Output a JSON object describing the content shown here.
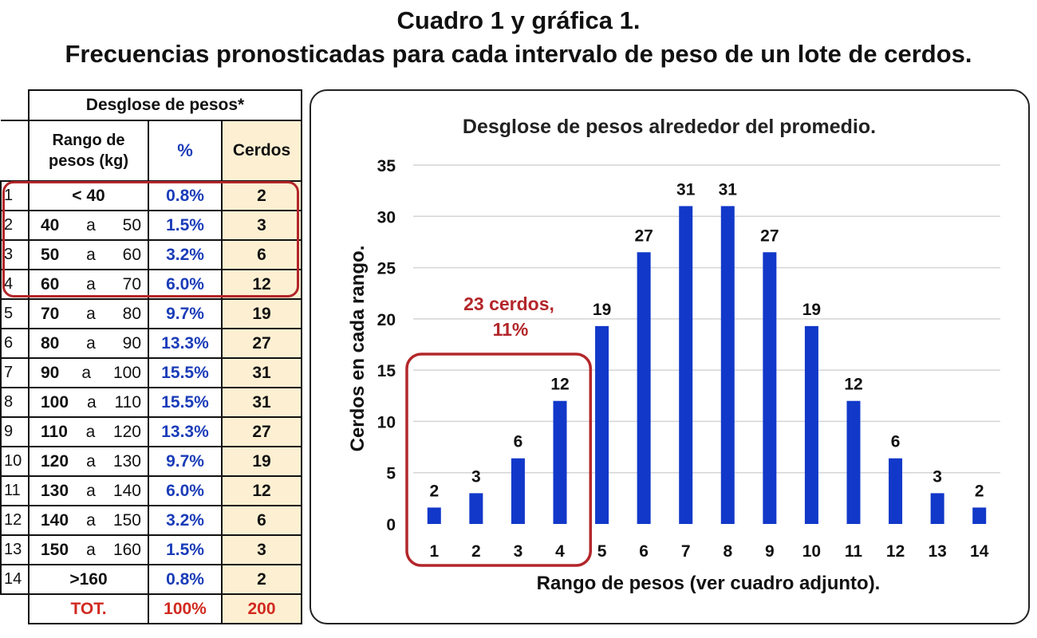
{
  "title_line1": "Cuadro 1 y gráfica 1.",
  "title_line2": "Frecuencias pronosticadas para cada intervalo de peso de un lote de cerdos.",
  "table": {
    "title": "Desglose de pesos*",
    "col_range": "Rango de pesos (kg)",
    "col_range_line1": "Rango de",
    "col_range_line2": "pesos (kg)",
    "col_pct": "%",
    "col_cerdos": "Cerdos",
    "rows": [
      {
        "idx": "1",
        "from": "< 40",
        "sep": "",
        "to": "",
        "pct": "0.8%",
        "cerdos": "2"
      },
      {
        "idx": "2",
        "from": "40",
        "sep": "a",
        "to": "50",
        "pct": "1.5%",
        "cerdos": "3"
      },
      {
        "idx": "3",
        "from": "50",
        "sep": "a",
        "to": "60",
        "pct": "3.2%",
        "cerdos": "6"
      },
      {
        "idx": "4",
        "from": "60",
        "sep": "a",
        "to": "70",
        "pct": "6.0%",
        "cerdos": "12"
      },
      {
        "idx": "5",
        "from": "70",
        "sep": "a",
        "to": "80",
        "pct": "9.7%",
        "cerdos": "19"
      },
      {
        "idx": "6",
        "from": "80",
        "sep": "a",
        "to": "90",
        "pct": "13.3%",
        "cerdos": "27"
      },
      {
        "idx": "7",
        "from": "90",
        "sep": "a",
        "to": "100",
        "pct": "15.5%",
        "cerdos": "31"
      },
      {
        "idx": "8",
        "from": "100",
        "sep": "a",
        "to": "110",
        "pct": "15.5%",
        "cerdos": "31"
      },
      {
        "idx": "9",
        "from": "110",
        "sep": "a",
        "to": "120",
        "pct": "13.3%",
        "cerdos": "27"
      },
      {
        "idx": "10",
        "from": "120",
        "sep": "a",
        "to": "130",
        "pct": "9.7%",
        "cerdos": "19"
      },
      {
        "idx": "11",
        "from": "130",
        "sep": "a",
        "to": "140",
        "pct": "6.0%",
        "cerdos": "12"
      },
      {
        "idx": "12",
        "from": "140",
        "sep": "a",
        "to": "150",
        "pct": "3.2%",
        "cerdos": "6"
      },
      {
        "idx": "13",
        "from": "150",
        "sep": "a",
        "to": "160",
        "pct": "1.5%",
        "cerdos": "3"
      },
      {
        "idx": "14",
        "from": ">160",
        "sep": "",
        "to": "",
        "pct": "0.8%",
        "cerdos": "2"
      }
    ],
    "total": {
      "label": "TOT.",
      "pct": "100%",
      "cerdos": "200"
    }
  },
  "colors": {
    "bar": "#1238c9",
    "highlight": "#b3262a",
    "pct_text": "#1a3cb8",
    "cerdos_bg": "#fdf0d2",
    "total_text": "#d12a20",
    "grid": "#d4d4d4"
  },
  "chart_data": {
    "type": "bar",
    "title": "Desglose de pesos alrededor del promedio.",
    "xlabel": "Rango de pesos (ver cuadro adjunto).",
    "ylabel": "Cerdos en cada rango.",
    "categories": [
      "1",
      "2",
      "3",
      "4",
      "5",
      "6",
      "7",
      "8",
      "9",
      "10",
      "11",
      "12",
      "13",
      "14"
    ],
    "values": [
      1.6,
      3,
      6.4,
      12,
      19.3,
      26.5,
      31,
      31,
      26.5,
      19.3,
      12,
      6.4,
      3,
      1.6
    ],
    "data_labels": [
      "2",
      "3",
      "6",
      "12",
      "19",
      "27",
      "31",
      "31",
      "27",
      "19",
      "12",
      "6",
      "3",
      "2"
    ],
    "ylim": [
      0,
      35
    ],
    "yticks": [
      0,
      5,
      10,
      15,
      20,
      25,
      30,
      35
    ],
    "grid": true,
    "annotation": {
      "line1": "23 cerdos,",
      "line2": "11%",
      "covers_categories": [
        "1",
        "2",
        "3",
        "4"
      ]
    }
  }
}
